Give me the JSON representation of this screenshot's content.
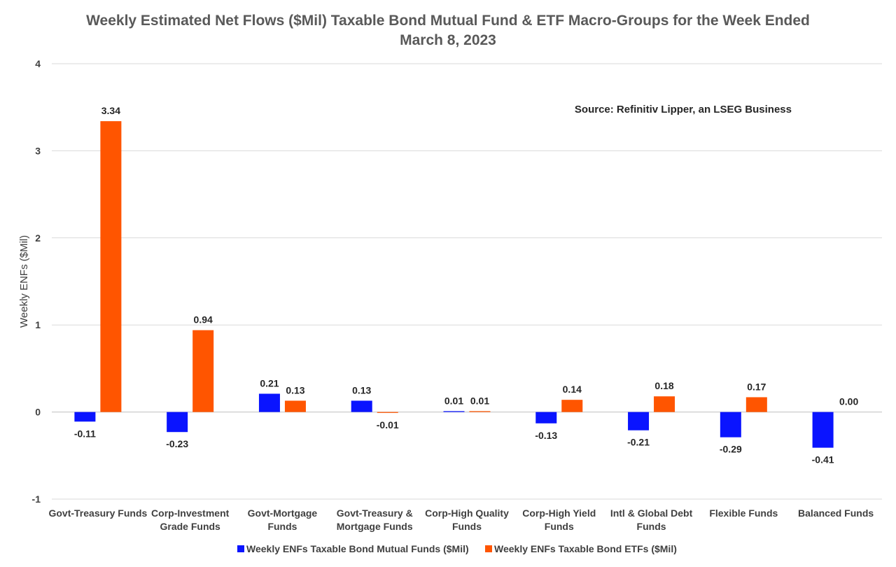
{
  "chart_data": {
    "type": "bar",
    "title": "Weekly Estimated Net Flows ($Mil) Taxable Bond Mutual Fund & ETF Macro-Groups for the Week Ended",
    "subtitle": "March 8, 2023",
    "xlabel": "",
    "ylabel": "Weekly ENFs ($Mil)",
    "ylim": [
      -1,
      4
    ],
    "yticks": [
      -1,
      0,
      1,
      2,
      3,
      4
    ],
    "grid": true,
    "legend_position": "bottom",
    "annotation": "Source: Refinitiv Lipper, an LSEG Business",
    "categories": [
      [
        "Govt-Treasury Funds"
      ],
      [
        "Corp-Investment",
        "Grade Funds"
      ],
      [
        "Govt-Mortgage",
        "Funds"
      ],
      [
        "Govt-Treasury &",
        "Mortgage Funds"
      ],
      [
        "Corp-High Quality",
        "Funds"
      ],
      [
        "Corp-High Yield",
        "Funds"
      ],
      [
        "Intl & Global Debt",
        "Funds"
      ],
      [
        "Flexible Funds"
      ],
      [
        "Balanced Funds"
      ]
    ],
    "series": [
      {
        "name": "Weekly ENFs Taxable Bond Mutual Funds ($Mil)",
        "color": "#0a14ff",
        "values": [
          -0.11,
          -0.23,
          0.21,
          0.13,
          0.01,
          -0.13,
          -0.21,
          -0.29,
          -0.41
        ],
        "labels": [
          "-0.11",
          "-0.23",
          "0.21",
          "0.13",
          "0.01",
          "-0.13",
          "-0.21",
          "-0.29",
          "-0.41"
        ]
      },
      {
        "name": "Weekly ENFs Taxable Bond ETFs ($Mil)",
        "color": "#ff5500",
        "values": [
          3.34,
          0.94,
          0.13,
          -0.01,
          0.01,
          0.14,
          0.18,
          0.17,
          0.0
        ],
        "labels": [
          "3.34",
          "0.94",
          "0.13",
          "-0.01",
          "0.01",
          "0.14",
          "0.18",
          "0.17",
          "0.00"
        ]
      }
    ]
  }
}
